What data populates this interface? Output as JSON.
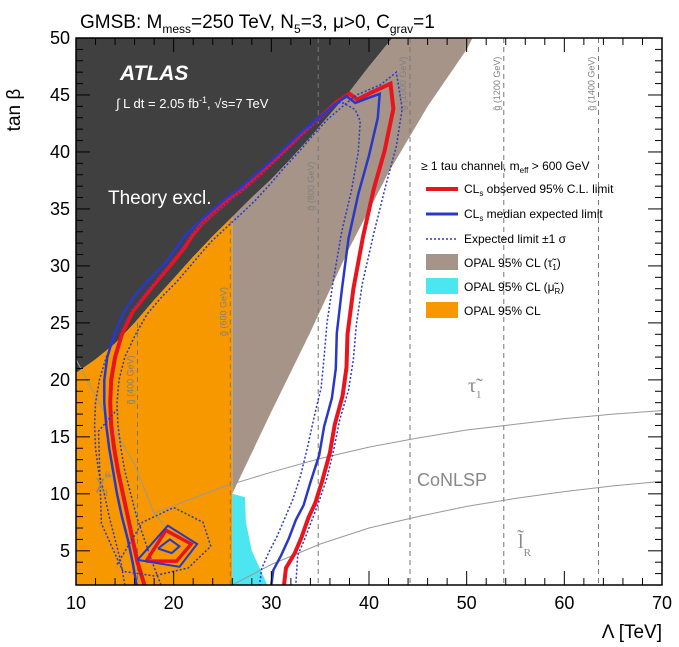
{
  "chart_data": {
    "type": "line",
    "title": "GMSB: M_mess=250 TeV, N_5=3, μ>0, C_grav=1",
    "xlabel": "Λ [TeV]",
    "ylabel": "tan β",
    "xlim": [
      10,
      70
    ],
    "ylim": [
      2,
      50
    ],
    "xticks": [
      "10",
      "20",
      "30",
      "40",
      "50",
      "60",
      "70"
    ],
    "yticks": [
      "5",
      "10",
      "15",
      "20",
      "25",
      "30",
      "35",
      "40",
      "45",
      "50"
    ],
    "atlas_label": "ATLAS",
    "lumi_label": "∫ L dt = 2.05 fb⁻¹, √s=7 TeV",
    "region_labels": {
      "theory": "Theory excl.",
      "conlsp": "CoNLSP",
      "stau": "τ̃₁",
      "slepton": "l̃_R",
      "neutralino": "χ̃⁰₁"
    },
    "legend": {
      "position": "right",
      "header": "≥ 1 tau channel, m_eff > 600 GeV",
      "entries": [
        {
          "label": "CLs observed 95% C.L. limit",
          "color": "#e8141e",
          "style": "line"
        },
        {
          "label": "CLs median expected limit",
          "color": "#2838c8",
          "style": "line"
        },
        {
          "label": "Expected limit ±1 σ",
          "color": "#2838c8",
          "style": "dotted"
        },
        {
          "label": "OPAL 95% CL (τ̃₁)",
          "color": "#a69488",
          "style": "box"
        },
        {
          "label": "OPAL 95% CL (μ̃_R)",
          "color": "#4be6f0",
          "style": "box"
        },
        {
          "label": "OPAL 95% CL",
          "color": "#f79800",
          "style": "box"
        }
      ]
    },
    "gluino_mass_lines": [
      {
        "lambda": 16.3,
        "label": "g̃ (400 GeV)"
      },
      {
        "lambda": 25.8,
        "label": "g̃ (600 GeV)"
      },
      {
        "lambda": 34.8,
        "label": "g̃ (800 GeV)"
      },
      {
        "lambda": 44.2,
        "label": "g̃ (1000 GeV)"
      },
      {
        "lambda": 53.8,
        "label": "g̃ (1200 GeV)"
      },
      {
        "lambda": 63.5,
        "label": "g̃ (1400 GeV)"
      }
    ],
    "series": [
      {
        "name": "CLs observed 95% C.L. limit",
        "color": "#e8141e",
        "x": [
          17,
          16.3,
          15.8,
          15.3,
          14.8,
          14.3,
          13.9,
          13.6,
          13.5,
          13.6,
          14.0,
          14.7,
          15.8,
          17.2,
          18.6,
          19.9,
          21.1,
          22.0,
          23.0,
          24.3,
          25.8,
          27.3,
          28.9,
          30.5,
          32.2,
          33.9,
          35.3,
          36.7,
          38.0,
          38.8,
          40.2,
          42.2,
          42.5,
          41.6,
          40.5,
          39.4,
          38.4,
          37.8,
          37.7,
          37.3,
          36.5,
          36.0,
          35.2,
          34.5,
          33.8,
          33.1,
          32.4,
          31.5,
          31.3
        ],
        "y": [
          2,
          4,
          6,
          8,
          10,
          12,
          14,
          16,
          18,
          20,
          22,
          24,
          26,
          27.5,
          29.0,
          30.3,
          31.6,
          32.8,
          33.8,
          34.8,
          35.9,
          36.9,
          38.1,
          39.4,
          40.8,
          42.2,
          43.3,
          44.4,
          45.1,
          44.6,
          45.2,
          46.0,
          43.8,
          40.1,
          36.8,
          32.6,
          28.0,
          24.0,
          21.1,
          18.6,
          16.1,
          13.6,
          11.1,
          9.2,
          7.9,
          6.2,
          4.8,
          3.5,
          2
        ]
      },
      {
        "name": "CLs median expected limit",
        "color": "#2838c8",
        "x": [
          16.2,
          15.8,
          15.3,
          14.7,
          14.2,
          13.8,
          13.4,
          13.1,
          12.9,
          12.9,
          13.2,
          13.9,
          14.9,
          16.2,
          17.7,
          19.1,
          20.2,
          21.2,
          22.4,
          23.8,
          25.3,
          26.9,
          28.5,
          30.2,
          31.8,
          33.4,
          35.0,
          36.4,
          37.7,
          38.6,
          39.8,
          41.1,
          40.9,
          40.0,
          38.9,
          37.9,
          37.2,
          36.7,
          36.6,
          36.2,
          35.4,
          34.9,
          34.0,
          33.3,
          32.5,
          31.8,
          31.0,
          30.2,
          30.0
        ],
        "y": [
          2,
          4,
          6,
          8,
          10,
          12,
          14,
          16,
          18,
          20,
          22,
          24,
          26,
          27.6,
          29.0,
          30.2,
          31.5,
          32.7,
          33.7,
          34.8,
          35.9,
          36.9,
          38.1,
          39.4,
          40.7,
          42.0,
          43.1,
          44.1,
          44.9,
          44.3,
          44.7,
          45.1,
          43.0,
          39.7,
          36.3,
          32.4,
          27.8,
          24.1,
          21.0,
          18.4,
          15.9,
          13.4,
          11.0,
          9.0,
          7.7,
          6.1,
          4.6,
          3.3,
          2
        ]
      },
      {
        "name": "Expected limit ±1 σ (upper)",
        "color": "#2838c8",
        "x": [
          18.7,
          17.8,
          17.0,
          16.2,
          15.6,
          15.0,
          14.6,
          14.3,
          14.2,
          14.4,
          15.0,
          16.1,
          17.3,
          18.8,
          20.3,
          21.6,
          22.7,
          23.8,
          25.3,
          26.7,
          28.3,
          29.8,
          31.3,
          32.8,
          34.3,
          35.8,
          37.3,
          38.7,
          40.1,
          41.2,
          42.8,
          43.4,
          42.8,
          41.7,
          40.5,
          39.3,
          38.7,
          38.4,
          37.9,
          37.0,
          36.4,
          35.7,
          34.9,
          34.2,
          33.5,
          32.7,
          32.5
        ],
        "y": [
          2,
          4,
          6,
          8,
          10,
          12,
          14,
          16,
          18,
          20,
          22,
          24,
          25.8,
          27.3,
          28.6,
          29.9,
          31.0,
          32.1,
          33.3,
          34.4,
          35.7,
          37.1,
          38.6,
          40.0,
          41.5,
          42.9,
          44.0,
          45.0,
          45.5,
          45.9,
          47.0,
          43.8,
          40.5,
          37.0,
          32.9,
          28.4,
          24.8,
          21.8,
          19.1,
          16.5,
          13.9,
          11.4,
          9.4,
          7.8,
          6.2,
          4.6,
          2
        ]
      },
      {
        "name": "Expected limit ±1 σ (lower)",
        "color": "#2838c8",
        "x": [
          15.0,
          14.6,
          14.0,
          13.4,
          12.9,
          12.3,
          12.0,
          11.9,
          12.0,
          12.4,
          13.1,
          14.2,
          15.6,
          17.1,
          18.5,
          19.7,
          20.8,
          21.9,
          23.3,
          24.8,
          26.4,
          28.0,
          29.6,
          31.2,
          32.8,
          34.3,
          35.8,
          37.1,
          38.0,
          38.6,
          39.1,
          38.9,
          38.2,
          37.2,
          36.3,
          35.7,
          35.4,
          35.1,
          34.4,
          33.7,
          33.0,
          32.2,
          31.4,
          30.6,
          29.7,
          29.0,
          28.8
        ],
        "y": [
          2,
          4,
          6,
          8,
          10,
          12,
          14,
          16,
          18,
          20,
          22,
          24,
          26,
          27.7,
          29.1,
          30.4,
          31.6,
          32.9,
          34.0,
          35.1,
          36.2,
          37.3,
          38.5,
          39.8,
          41.1,
          42.4,
          43.5,
          44.4,
          44.0,
          43.7,
          42.7,
          40.0,
          36.6,
          33.0,
          28.5,
          25.0,
          22.0,
          19.3,
          16.8,
          14.1,
          11.6,
          9.5,
          7.9,
          6.3,
          4.8,
          3.4,
          2
        ]
      }
    ],
    "closed_contours": [
      {
        "name": "island observed",
        "color": "#e8141e",
        "x": [
          17.2,
          19.2,
          21.8,
          20.3,
          17.2
        ],
        "y": [
          4.1,
          6.8,
          5.6,
          4.1,
          4.1
        ]
      },
      {
        "name": "island expected",
        "color": "#2838c8",
        "x": [
          16.3,
          19.4,
          22.4,
          20.6,
          16.3
        ],
        "y": [
          4.2,
          7.2,
          5.6,
          3.6,
          4.2
        ]
      },
      {
        "name": "island expected inner",
        "color": "#2838c8",
        "x": [
          18.4,
          19.6,
          20.6,
          19.8,
          18.4
        ],
        "y": [
          5.2,
          6.0,
          5.4,
          4.8,
          5.2
        ]
      },
      {
        "name": "island ±1σ outer",
        "color": "#2838c8",
        "x": [
          14.2,
          16.8,
          20.0,
          23.0,
          23.8,
          21.5,
          18.0,
          14.8,
          12.6,
          12.3,
          14.2
        ],
        "y": [
          3.8,
          7.5,
          8.8,
          7.5,
          5.4,
          3.5,
          2.8,
          3.2,
          7.4,
          15.5,
          17.4
        ]
      }
    ]
  }
}
